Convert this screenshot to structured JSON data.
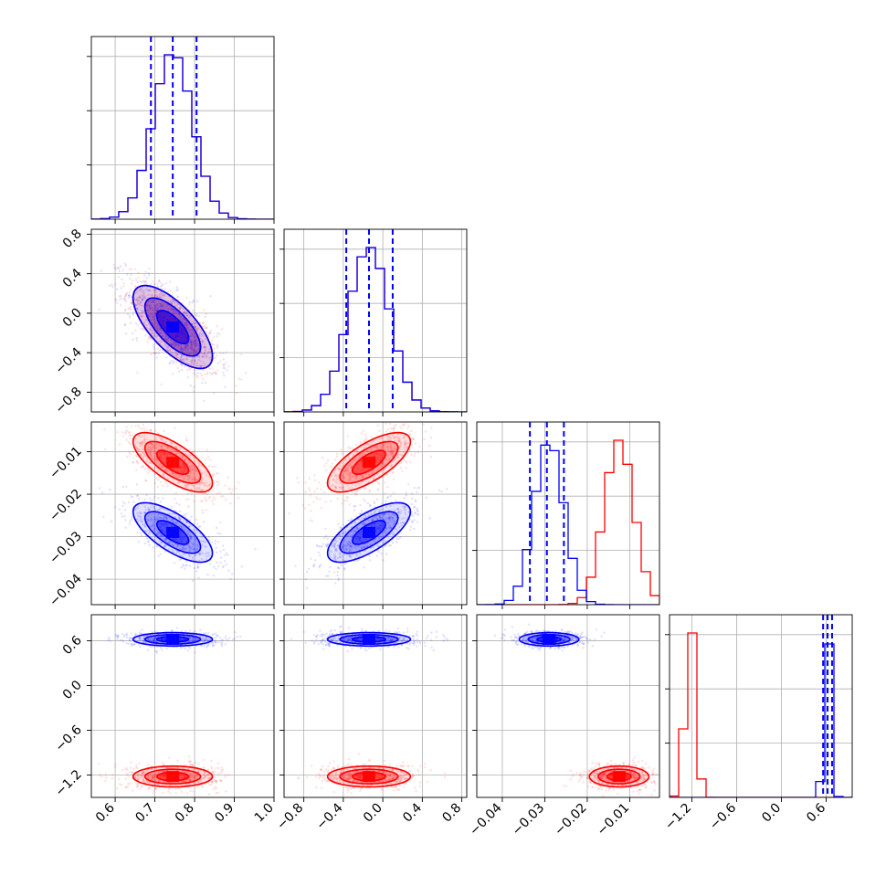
{
  "chart_data": {
    "type": "corner",
    "grid": true,
    "colors": {
      "series_a": "#ff0000",
      "series_b": "#0000ff"
    },
    "params": [
      {
        "range": [
          0.54,
          1.0
        ],
        "ticks": [
          "0.6",
          "0.7",
          "0.8",
          "0.9",
          "1.0"
        ],
        "tick_values": [
          0.6,
          0.7,
          0.8,
          0.9,
          1.0
        ]
      },
      {
        "range": [
          -1.0,
          0.85
        ],
        "ticks": [
          "−0.8",
          "−0.4",
          "0.0",
          "0.4",
          "0.8"
        ],
        "tick_values": [
          -0.8,
          -0.4,
          0.0,
          0.4,
          0.8
        ]
      },
      {
        "range": [
          -0.046,
          -0.003
        ],
        "ticks": [
          "−0.04",
          "−0.03",
          "−0.02",
          "−0.01"
        ],
        "tick_values": [
          -0.04,
          -0.03,
          -0.02,
          -0.01
        ]
      },
      {
        "range": [
          -1.5,
          0.95
        ],
        "ticks": [
          "−1.2",
          "−0.6",
          "0.0",
          "0.6"
        ],
        "tick_values": [
          -1.2,
          -0.6,
          0.0,
          0.6
        ]
      }
    ],
    "series": [
      {
        "color": "#ff0000",
        "mean": [
          0.745,
          -0.14,
          -0.0125,
          -1.22
        ],
        "sigma": [
          0.05,
          0.21,
          0.0035,
          0.07
        ],
        "correlations": {
          "0-1": -0.7,
          "0-2": -0.7,
          "1-2": 0.7,
          "0-3": 0.0,
          "1-3": 0.0,
          "2-3": 0.0
        },
        "quantiles": null
      },
      {
        "color": "#0000ff",
        "mean": [
          0.745,
          -0.14,
          -0.029,
          0.62
        ],
        "sigma": [
          0.05,
          0.21,
          0.0035,
          0.045
        ],
        "correlations": {
          "0-1": -0.7,
          "0-2": -0.7,
          "1-2": 0.7,
          "0-3": 0.0,
          "1-3": 0.0,
          "2-3": 0.0
        },
        "quantiles": [
          [
            0.69,
            0.745,
            0.805
          ],
          [
            -0.37,
            -0.14,
            0.1
          ],
          [
            -0.0335,
            -0.0295,
            -0.0255
          ],
          [
            0.56,
            0.62,
            0.68
          ]
        ]
      }
    ]
  }
}
